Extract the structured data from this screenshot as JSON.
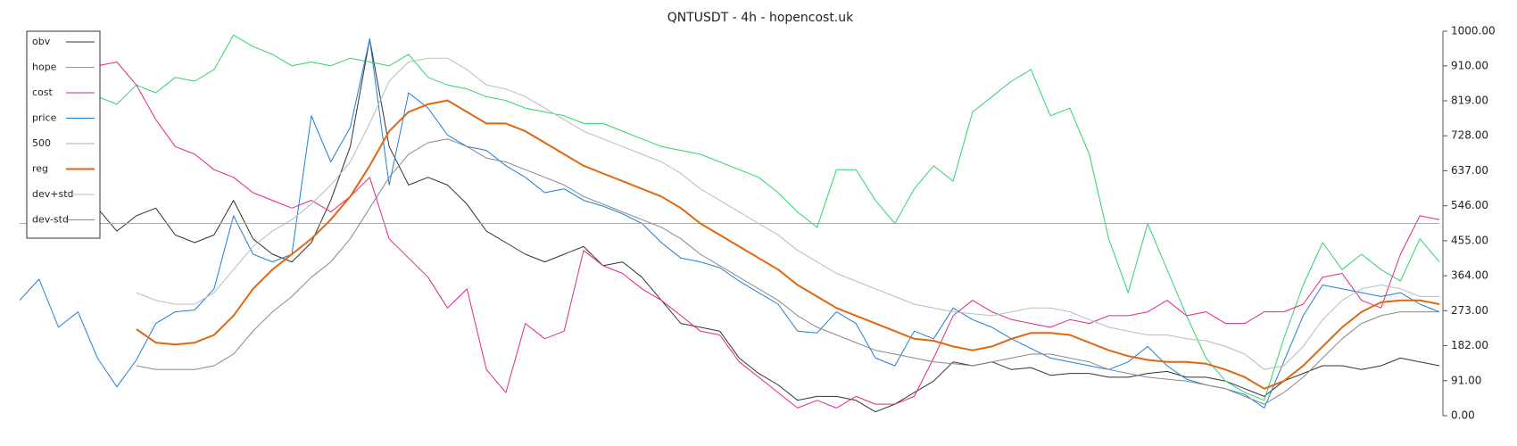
{
  "chart_data": {
    "type": "line",
    "title": "QNTUSDT - 4h - hopencost.uk",
    "ylim": [
      0,
      1000
    ],
    "yticks": [
      {
        "value": 0,
        "label": "0.00"
      },
      {
        "value": 91,
        "label": "91.00"
      },
      {
        "value": 182,
        "label": "182.00"
      },
      {
        "value": 273,
        "label": "273.00"
      },
      {
        "value": 364,
        "label": "364.00"
      },
      {
        "value": 455,
        "label": "455.00"
      },
      {
        "value": 546,
        "label": "546.00"
      },
      {
        "value": 637,
        "label": "637.00"
      },
      {
        "value": 728,
        "label": "728.00"
      },
      {
        "value": 819,
        "label": "819.00"
      },
      {
        "value": 910,
        "label": "910.00"
      },
      {
        "value": 1000,
        "label": "1000.00"
      }
    ],
    "legend": "upper left",
    "series": [
      {
        "name": "obv",
        "color": "#333333",
        "linewidth": 1,
        "values": [
          null,
          null,
          null,
          null,
          540,
          480,
          520,
          540,
          470,
          450,
          470,
          560,
          460,
          420,
          400,
          450,
          560,
          700,
          980,
          700,
          600,
          620,
          600,
          550,
          480,
          450,
          420,
          400,
          420,
          440,
          390,
          400,
          360,
          300,
          240,
          230,
          220,
          150,
          110,
          80,
          40,
          50,
          50,
          40,
          10,
          30,
          60,
          90,
          140,
          130,
          140,
          120,
          125,
          105,
          110,
          110,
          100,
          100,
          110,
          115,
          100,
          100,
          90,
          70,
          50,
          90,
          110,
          130,
          130,
          120,
          130,
          150,
          140,
          130
        ]
      },
      {
        "name": "hope",
        "color": "#2ed46e",
        "linewidth": 1,
        "values": [
          null,
          null,
          null,
          null,
          830,
          810,
          860,
          840,
          880,
          870,
          900,
          990,
          960,
          940,
          910,
          920,
          910,
          930,
          920,
          910,
          940,
          880,
          860,
          850,
          830,
          820,
          800,
          790,
          780,
          760,
          760,
          740,
          720,
          700,
          690,
          680,
          660,
          640,
          620,
          580,
          530,
          490,
          640,
          640,
          560,
          500,
          590,
          650,
          610,
          790,
          830,
          870,
          900,
          780,
          800,
          680,
          460,
          320,
          500,
          380,
          260,
          150,
          90,
          60,
          40,
          200,
          340,
          450,
          380,
          420,
          380,
          350,
          460,
          400
        ]
      },
      {
        "name": "cost",
        "color": "#e3268a",
        "linewidth": 1,
        "values": [
          null,
          null,
          null,
          null,
          910,
          920,
          860,
          770,
          700,
          680,
          640,
          620,
          580,
          560,
          540,
          560,
          530,
          570,
          620,
          460,
          410,
          360,
          280,
          330,
          120,
          60,
          240,
          200,
          220,
          430,
          390,
          370,
          330,
          300,
          260,
          220,
          210,
          140,
          100,
          60,
          20,
          40,
          20,
          50,
          30,
          30,
          50,
          150,
          260,
          300,
          270,
          250,
          240,
          230,
          250,
          240,
          260,
          260,
          270,
          300,
          260,
          270,
          240,
          240,
          270,
          270,
          290,
          360,
          370,
          300,
          280,
          420,
          520,
          510
        ]
      },
      {
        "name": "price",
        "color": "#1f7fd6",
        "linewidth": 1,
        "values": [
          300,
          355,
          230,
          270,
          150,
          75,
          145,
          240,
          270,
          275,
          330,
          520,
          420,
          400,
          420,
          780,
          660,
          750,
          980,
          600,
          840,
          800,
          730,
          700,
          690,
          650,
          620,
          580,
          590,
          560,
          545,
          525,
          500,
          450,
          410,
          400,
          385,
          350,
          320,
          290,
          220,
          215,
          270,
          240,
          150,
          130,
          220,
          200,
          280,
          250,
          230,
          200,
          175,
          150,
          140,
          130,
          120,
          140,
          180,
          130,
          95,
          80,
          70,
          55,
          20,
          140,
          260,
          340,
          330,
          320,
          310,
          320,
          290,
          270
        ]
      },
      {
        "name": "500",
        "color": "#aaaaaa",
        "linewidth": 1,
        "values": [
          500,
          500,
          500,
          500,
          500,
          500,
          500,
          500,
          500,
          500,
          500,
          500,
          500,
          500,
          500,
          500,
          500,
          500,
          500,
          500,
          500,
          500,
          500,
          500,
          500,
          500,
          500,
          500,
          500,
          500,
          500,
          500,
          500,
          500,
          500,
          500,
          500,
          500,
          500,
          500,
          500,
          500,
          500,
          500,
          500,
          500,
          500,
          500,
          500,
          500,
          500,
          500,
          500,
          500,
          500,
          500,
          500,
          500,
          500,
          500,
          500,
          500,
          500,
          500,
          500,
          500,
          500,
          500,
          500,
          500,
          500,
          500,
          500,
          500
        ]
      },
      {
        "name": "reg",
        "color": "#e0670f",
        "linewidth": 2,
        "values": [
          null,
          null,
          null,
          null,
          null,
          null,
          225,
          190,
          185,
          190,
          210,
          260,
          330,
          380,
          420,
          460,
          510,
          570,
          650,
          740,
          790,
          810,
          820,
          790,
          760,
          760,
          740,
          710,
          680,
          650,
          630,
          610,
          590,
          570,
          540,
          500,
          470,
          440,
          410,
          380,
          340,
          310,
          280,
          260,
          240,
          220,
          200,
          195,
          180,
          170,
          180,
          200,
          215,
          215,
          210,
          190,
          170,
          155,
          145,
          140,
          140,
          135,
          120,
          100,
          70,
          90,
          130,
          180,
          230,
          270,
          295,
          300,
          300,
          290
        ]
      },
      {
        "name": "dev+std",
        "color": "#bbbbbb",
        "linewidth": 1,
        "values": [
          null,
          null,
          null,
          null,
          null,
          null,
          320,
          300,
          290,
          290,
          320,
          380,
          440,
          480,
          510,
          550,
          600,
          660,
          760,
          870,
          920,
          930,
          930,
          900,
          860,
          850,
          830,
          800,
          770,
          740,
          720,
          700,
          680,
          660,
          630,
          590,
          560,
          530,
          500,
          470,
          430,
          400,
          370,
          350,
          330,
          310,
          290,
          280,
          270,
          265,
          260,
          270,
          280,
          280,
          270,
          250,
          230,
          220,
          210,
          210,
          200,
          195,
          180,
          160,
          120,
          130,
          180,
          250,
          300,
          330,
          340,
          330,
          310,
          310
        ]
      },
      {
        "name": "dev-std",
        "color": "#888888",
        "linewidth": 1,
        "values": [
          null,
          null,
          null,
          null,
          null,
          null,
          130,
          120,
          120,
          120,
          130,
          160,
          220,
          270,
          310,
          360,
          400,
          460,
          540,
          620,
          680,
          710,
          720,
          700,
          670,
          660,
          640,
          620,
          600,
          570,
          550,
          530,
          510,
          490,
          460,
          420,
          390,
          360,
          330,
          300,
          260,
          230,
          210,
          190,
          170,
          160,
          150,
          140,
          135,
          130,
          140,
          150,
          160,
          160,
          150,
          140,
          120,
          110,
          100,
          95,
          90,
          80,
          70,
          50,
          30,
          60,
          100,
          150,
          200,
          240,
          260,
          270,
          270,
          270
        ]
      }
    ]
  }
}
